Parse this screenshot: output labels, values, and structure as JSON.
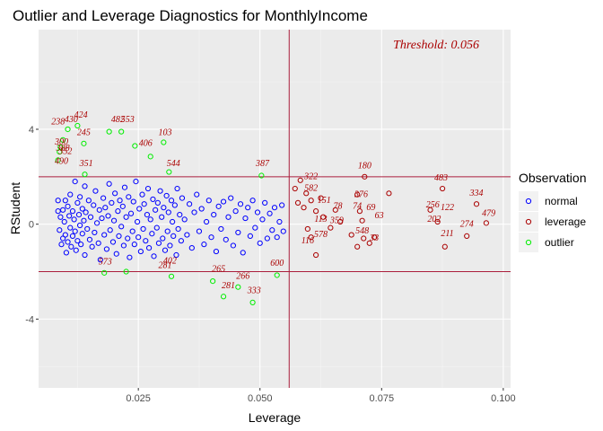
{
  "chart_data": {
    "type": "scatter",
    "title": "Outlier and Leverage Diagnostics for MonthlyIncome",
    "xlabel": "Leverage",
    "ylabel": "RStudent",
    "xlim": [
      0.0045,
      0.1015
    ],
    "ylim": [
      -6.9,
      8.2
    ],
    "x_ticks": [
      {
        "value": 0.025,
        "label": "0.025"
      },
      {
        "value": 0.05,
        "label": "0.050"
      },
      {
        "value": 0.075,
        "label": "0.075"
      },
      {
        "value": 0.1,
        "label": "0.100"
      }
    ],
    "y_ticks": [
      {
        "value": -4,
        "label": "-4"
      },
      {
        "value": 0,
        "label": "0"
      },
      {
        "value": 4,
        "label": "4"
      }
    ],
    "grid": true,
    "threshold_text": "Threshold: 0.056",
    "reference_lines": {
      "leverage_threshold": 0.056,
      "rstudent_upper": 2,
      "rstudent_lower": -2
    },
    "legend": {
      "title": "Observation",
      "placement": "right",
      "entries": [
        {
          "name": "normal",
          "color": "#0000ff"
        },
        {
          "name": "leverage",
          "color": "#aa0000"
        },
        {
          "name": "outlier",
          "color": "#00ee00"
        }
      ]
    },
    "series": [
      {
        "name": "normal",
        "color": "#0000ff",
        "points": [
          [
            0.0085,
            1.0
          ],
          [
            0.0085,
            0.55
          ],
          [
            0.0088,
            -0.25
          ],
          [
            0.009,
            0.3
          ],
          [
            0.0092,
            -0.85
          ],
          [
            0.0095,
            0.6
          ],
          [
            0.0095,
            -0.6
          ],
          [
            0.0098,
            0.1
          ],
          [
            0.01,
            1.0
          ],
          [
            0.01,
            -0.45
          ],
          [
            0.0102,
            -1.2
          ],
          [
            0.0105,
            0.75
          ],
          [
            0.0105,
            -0.75
          ],
          [
            0.0108,
            0.35
          ],
          [
            0.011,
            -0.15
          ],
          [
            0.011,
            1.25
          ],
          [
            0.0112,
            -0.95
          ],
          [
            0.0115,
            0.55
          ],
          [
            0.0115,
            -0.5
          ],
          [
            0.0118,
            0.2
          ],
          [
            0.012,
            1.8
          ],
          [
            0.012,
            -0.3
          ],
          [
            0.0122,
            -1.1
          ],
          [
            0.0125,
            0.9
          ],
          [
            0.0125,
            -0.7
          ],
          [
            0.0128,
            0.4
          ],
          [
            0.013,
            -0.05
          ],
          [
            0.013,
            1.15
          ],
          [
            0.0132,
            -0.85
          ],
          [
            0.0135,
            0.65
          ],
          [
            0.0135,
            -0.4
          ],
          [
            0.0138,
            0.15
          ],
          [
            0.014,
            1.6
          ],
          [
            0.014,
            -1.3
          ],
          [
            0.0142,
            0.5
          ],
          [
            0.0145,
            -0.2
          ],
          [
            0.0148,
            1.0
          ],
          [
            0.015,
            -0.65
          ],
          [
            0.0152,
            0.3
          ],
          [
            0.0155,
            -0.95
          ],
          [
            0.0158,
            0.8
          ],
          [
            0.016,
            -0.35
          ],
          [
            0.0162,
            1.4
          ],
          [
            0.0165,
            0.05
          ],
          [
            0.0168,
            -0.8
          ],
          [
            0.017,
            0.6
          ],
          [
            0.0172,
            -1.5
          ],
          [
            0.0175,
            0.25
          ],
          [
            0.0178,
            1.1
          ],
          [
            0.018,
            -0.45
          ],
          [
            0.0182,
            0.7
          ],
          [
            0.0185,
            -1.05
          ],
          [
            0.0188,
            0.35
          ],
          [
            0.019,
            1.7
          ],
          [
            0.0192,
            -0.25
          ],
          [
            0.0195,
            0.9
          ],
          [
            0.0198,
            -0.75
          ],
          [
            0.02,
            0.15
          ],
          [
            0.0202,
            1.3
          ],
          [
            0.0205,
            -1.25
          ],
          [
            0.0208,
            0.55
          ],
          [
            0.021,
            -0.5
          ],
          [
            0.0212,
            1.0
          ],
          [
            0.0215,
            -0.1
          ],
          [
            0.0218,
            0.75
          ],
          [
            0.022,
            -0.9
          ],
          [
            0.0222,
            1.55
          ],
          [
            0.0225,
            0.3
          ],
          [
            0.0228,
            -0.6
          ],
          [
            0.023,
            1.15
          ],
          [
            0.0232,
            -1.4
          ],
          [
            0.0235,
            0.45
          ],
          [
            0.0238,
            -0.3
          ],
          [
            0.024,
            0.95
          ],
          [
            0.0242,
            -0.85
          ],
          [
            0.0245,
            1.8
          ],
          [
            0.0248,
            0.1
          ],
          [
            0.025,
            -0.55
          ],
          [
            0.0252,
            0.65
          ],
          [
            0.0255,
            -1.15
          ],
          [
            0.0258,
            1.25
          ],
          [
            0.026,
            -0.2
          ],
          [
            0.0262,
            0.85
          ],
          [
            0.0265,
            -0.7
          ],
          [
            0.0268,
            0.4
          ],
          [
            0.027,
            1.5
          ],
          [
            0.0272,
            -1.0
          ],
          [
            0.0275,
            0.2
          ],
          [
            0.0278,
            -0.4
          ],
          [
            0.028,
            1.05
          ],
          [
            0.0282,
            -1.35
          ],
          [
            0.0285,
            0.6
          ],
          [
            0.0288,
            -0.15
          ],
          [
            0.029,
            0.9
          ],
          [
            0.0292,
            -0.8
          ],
          [
            0.0295,
            1.4
          ],
          [
            0.0298,
            0.3
          ],
          [
            0.03,
            -0.6
          ],
          [
            0.0302,
            0.7
          ],
          [
            0.0305,
            -1.1
          ],
          [
            0.0308,
            1.2
          ],
          [
            0.031,
            -0.3
          ],
          [
            0.0312,
            0.5
          ],
          [
            0.0315,
            -0.9
          ],
          [
            0.0318,
            1.0
          ],
          [
            0.032,
            0.1
          ],
          [
            0.0322,
            -0.5
          ],
          [
            0.0325,
            0.8
          ],
          [
            0.0328,
            -1.3
          ],
          [
            0.033,
            1.5
          ],
          [
            0.0332,
            -0.2
          ],
          [
            0.0335,
            0.4
          ],
          [
            0.0338,
            -0.7
          ],
          [
            0.034,
            1.1
          ],
          [
            0.0345,
            0.2
          ],
          [
            0.035,
            -0.45
          ],
          [
            0.0355,
            0.85
          ],
          [
            0.036,
            -1.0
          ],
          [
            0.0365,
            0.5
          ],
          [
            0.037,
            1.25
          ],
          [
            0.0375,
            -0.3
          ],
          [
            0.038,
            0.65
          ],
          [
            0.0385,
            -0.85
          ],
          [
            0.039,
            0.1
          ],
          [
            0.0395,
            1.0
          ],
          [
            0.04,
            -0.55
          ],
          [
            0.0405,
            0.4
          ],
          [
            0.041,
            -1.15
          ],
          [
            0.0415,
            0.75
          ],
          [
            0.042,
            -0.2
          ],
          [
            0.0425,
            0.95
          ],
          [
            0.043,
            -0.65
          ],
          [
            0.0435,
            0.3
          ],
          [
            0.044,
            1.1
          ],
          [
            0.0445,
            -0.9
          ],
          [
            0.045,
            0.55
          ],
          [
            0.0455,
            -0.35
          ],
          [
            0.046,
            0.85
          ],
          [
            0.0465,
            -1.2
          ],
          [
            0.047,
            0.25
          ],
          [
            0.0475,
            0.7
          ],
          [
            0.048,
            -0.5
          ],
          [
            0.0485,
            1.0
          ],
          [
            0.049,
            -0.15
          ],
          [
            0.0495,
            0.5
          ],
          [
            0.05,
            -0.8
          ],
          [
            0.0505,
            0.2
          ],
          [
            0.051,
            0.9
          ],
          [
            0.0515,
            -0.6
          ],
          [
            0.052,
            0.45
          ],
          [
            0.0525,
            -0.25
          ],
          [
            0.053,
            0.7
          ],
          [
            0.0535,
            -0.55
          ],
          [
            0.054,
            0.1
          ],
          [
            0.0545,
            0.8
          ],
          [
            0.0548,
            -0.3
          ]
        ]
      },
      {
        "name": "leverage",
        "color": "#aa0000",
        "points": [
          [
            0.0572,
            1.5
          ],
          [
            0.0578,
            0.9
          ],
          [
            0.0583,
            1.85
          ],
          [
            0.059,
            0.7
          ],
          [
            0.0595,
            1.3
          ],
          [
            0.0605,
            1.0
          ],
          [
            0.0615,
            0.55
          ],
          [
            0.0625,
            1.1
          ],
          [
            0.063,
            0.3
          ],
          [
            0.0655,
            0.6
          ],
          [
            0.0665,
            0.1
          ],
          [
            0.07,
            1.25
          ],
          [
            0.0705,
            0.55
          ],
          [
            0.071,
            0.15
          ],
          [
            0.0715,
            2.0
          ],
          [
            0.0725,
            -0.8
          ],
          [
            0.0735,
            -0.55
          ],
          [
            0.0765,
            1.3
          ],
          [
            0.085,
            0.6
          ],
          [
            0.0865,
            0.1
          ],
          [
            0.0875,
            1.5
          ],
          [
            0.088,
            -0.95
          ],
          [
            0.0925,
            -0.5
          ],
          [
            0.0945,
            0.85
          ],
          [
            0.0965,
            0.05
          ],
          [
            0.0598,
            -0.2
          ],
          [
            0.0605,
            -0.55
          ],
          [
            0.0615,
            -1.3
          ],
          [
            0.0645,
            -0.15
          ],
          [
            0.0688,
            -0.45
          ],
          [
            0.07,
            -0.95
          ],
          [
            0.0713,
            -0.6
          ]
        ]
      },
      {
        "name": "outlier",
        "color": "#00ee00",
        "points": [
          [
            0.0085,
            2.7
          ],
          [
            0.0088,
            3.05
          ],
          [
            0.009,
            3.25
          ],
          [
            0.0095,
            3.55
          ],
          [
            0.0105,
            4.0
          ],
          [
            0.0125,
            4.15
          ],
          [
            0.0138,
            3.4
          ],
          [
            0.014,
            2.1
          ],
          [
            0.018,
            -2.05
          ],
          [
            0.019,
            3.9
          ],
          [
            0.0215,
            3.9
          ],
          [
            0.0225,
            -2.0
          ],
          [
            0.0243,
            3.3
          ],
          [
            0.0275,
            2.85
          ],
          [
            0.0302,
            3.45
          ],
          [
            0.0313,
            2.2
          ],
          [
            0.0318,
            -2.2
          ],
          [
            0.0403,
            -2.4
          ],
          [
            0.0425,
            -3.05
          ],
          [
            0.0455,
            -2.65
          ],
          [
            0.0485,
            -3.3
          ],
          [
            0.0503,
            2.05
          ],
          [
            0.0535,
            -2.15
          ]
        ]
      }
    ],
    "point_labels": [
      {
        "text": "238",
        "x": 0.0085,
        "y": 4.2,
        "series": "leverage"
      },
      {
        "text": "430",
        "x": 0.0112,
        "y": 4.3,
        "series": "leverage"
      },
      {
        "text": "424",
        "x": 0.0132,
        "y": 4.5,
        "series": "leverage"
      },
      {
        "text": "245",
        "x": 0.0138,
        "y": 3.75,
        "series": "leverage"
      },
      {
        "text": "482",
        "x": 0.0208,
        "y": 4.3,
        "series": "leverage"
      },
      {
        "text": "553",
        "x": 0.0228,
        "y": 4.3,
        "series": "leverage"
      },
      {
        "text": "103",
        "x": 0.0305,
        "y": 3.75,
        "series": "leverage"
      },
      {
        "text": "406",
        "x": 0.0265,
        "y": 3.3,
        "series": "leverage"
      },
      {
        "text": "300",
        "x": 0.0092,
        "y": 3.35,
        "series": "leverage"
      },
      {
        "text": "388",
        "x": 0.0095,
        "y": 3.1,
        "series": "leverage"
      },
      {
        "text": "352",
        "x": 0.01,
        "y": 2.95,
        "series": "leverage"
      },
      {
        "text": "490",
        "x": 0.0092,
        "y": 2.55,
        "series": "leverage"
      },
      {
        "text": "351",
        "x": 0.0143,
        "y": 2.45,
        "series": "leverage"
      },
      {
        "text": "544",
        "x": 0.0322,
        "y": 2.45,
        "series": "leverage"
      },
      {
        "text": "387",
        "x": 0.0505,
        "y": 2.45,
        "series": "leverage"
      },
      {
        "text": "573",
        "x": 0.0182,
        "y": -1.7,
        "series": "leverage"
      },
      {
        "text": "402",
        "x": 0.0315,
        "y": -1.65,
        "series": "leverage"
      },
      {
        "text": "281",
        "x": 0.0305,
        "y": -1.85,
        "series": "leverage"
      },
      {
        "text": "265",
        "x": 0.0415,
        "y": -2.0,
        "series": "leverage"
      },
      {
        "text": "266",
        "x": 0.0465,
        "y": -2.3,
        "series": "leverage"
      },
      {
        "text": "281",
        "x": 0.0435,
        "y": -2.7,
        "series": "leverage"
      },
      {
        "text": "600",
        "x": 0.0535,
        "y": -1.75,
        "series": "leverage"
      },
      {
        "text": "333",
        "x": 0.0488,
        "y": -2.9,
        "series": "leverage"
      },
      {
        "text": "180",
        "x": 0.0715,
        "y": 2.35,
        "series": "leverage"
      },
      {
        "text": "483",
        "x": 0.0872,
        "y": 1.85,
        "series": "leverage"
      },
      {
        "text": "322",
        "x": 0.0605,
        "y": 1.9,
        "series": "leverage"
      },
      {
        "text": "582",
        "x": 0.0605,
        "y": 1.4,
        "series": "leverage"
      },
      {
        "text": "376",
        "x": 0.0708,
        "y": 1.15,
        "series": "leverage"
      },
      {
        "text": "334",
        "x": 0.0945,
        "y": 1.2,
        "series": "leverage"
      },
      {
        "text": "256",
        "x": 0.0855,
        "y": 0.7,
        "series": "leverage"
      },
      {
        "text": "122",
        "x": 0.0885,
        "y": 0.6,
        "series": "leverage"
      },
      {
        "text": "479",
        "x": 0.097,
        "y": 0.35,
        "series": "leverage"
      },
      {
        "text": "202",
        "x": 0.0858,
        "y": 0.1,
        "series": "leverage"
      },
      {
        "text": "274",
        "x": 0.0925,
        "y": -0.1,
        "series": "leverage"
      },
      {
        "text": "211",
        "x": 0.0885,
        "y": -0.5,
        "series": "leverage"
      },
      {
        "text": "151",
        "x": 0.0632,
        "y": 0.9,
        "series": "leverage"
      },
      {
        "text": "78",
        "x": 0.066,
        "y": 0.65,
        "series": "leverage"
      },
      {
        "text": "74",
        "x": 0.07,
        "y": 0.65,
        "series": "leverage"
      },
      {
        "text": "69",
        "x": 0.0728,
        "y": 0.6,
        "series": "leverage"
      },
      {
        "text": "63",
        "x": 0.0745,
        "y": 0.25,
        "series": "leverage"
      },
      {
        "text": "359",
        "x": 0.0658,
        "y": 0.05,
        "series": "leverage"
      },
      {
        "text": "113",
        "x": 0.0625,
        "y": 0.1,
        "series": "leverage"
      },
      {
        "text": "578",
        "x": 0.0625,
        "y": -0.55,
        "series": "leverage"
      },
      {
        "text": "116",
        "x": 0.0598,
        "y": -0.8,
        "series": "leverage"
      },
      {
        "text": "548",
        "x": 0.071,
        "y": -0.4,
        "series": "leverage"
      },
      {
        "text": "33",
        "x": 0.0735,
        "y": -0.7,
        "series": "leverage"
      }
    ]
  }
}
